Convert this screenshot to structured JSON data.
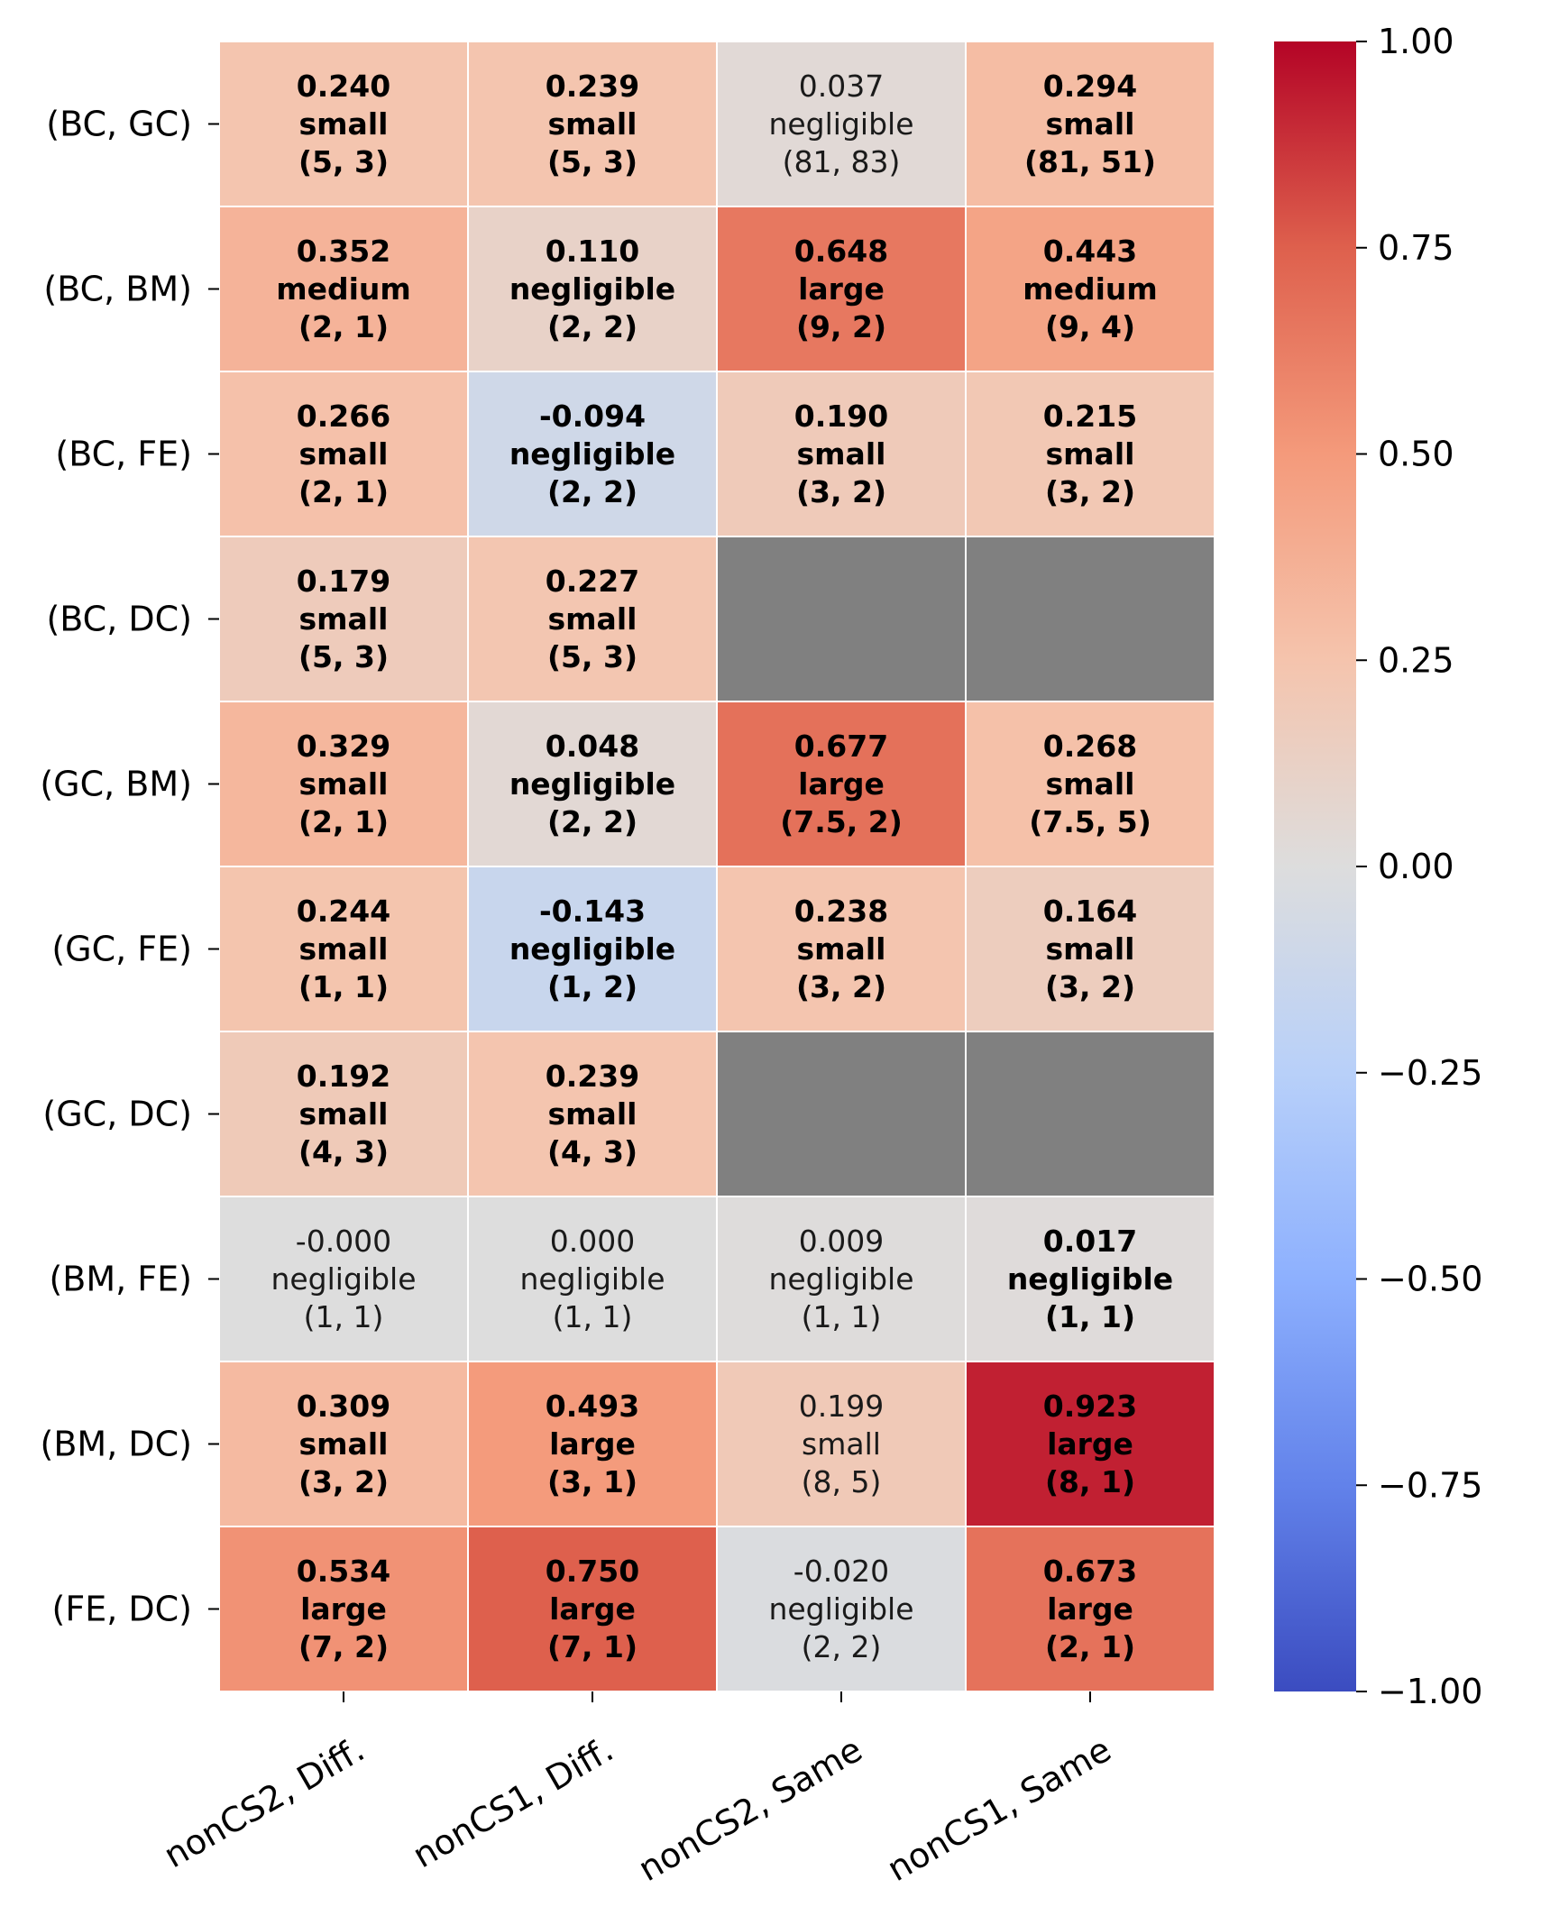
{
  "chart_data": {
    "type": "heatmap",
    "title": "",
    "xlabel": "",
    "ylabel": "",
    "columns": [
      "nonCS2, Diff.",
      "nonCS1, Diff.",
      "nonCS2, Same",
      "nonCS1, Same"
    ],
    "rows": [
      "(BC, GC)",
      "(BC, BM)",
      "(BC, FE)",
      "(BC, DC)",
      "(GC, BM)",
      "(GC, FE)",
      "(GC, DC)",
      "(BM, FE)",
      "(BM, DC)",
      "(FE, DC)"
    ],
    "vmin": -1.0,
    "vmax": 1.0,
    "colormap": "coolwarm",
    "missing_color": "#808080",
    "colorbar_ticks": [
      "1.00",
      "0.75",
      "0.50",
      "0.25",
      "0.00",
      "−0.25",
      "−0.50",
      "−0.75",
      "−1.00"
    ],
    "colorbar_tick_values": [
      1.0,
      0.75,
      0.5,
      0.25,
      0.0,
      -0.25,
      -0.5,
      -0.75,
      -1.0
    ],
    "cells": [
      [
        {
          "value": 0.24,
          "value_label": "0.240",
          "effect": "small",
          "pair": "(5, 3)",
          "bold": true
        },
        {
          "value": 0.239,
          "value_label": "0.239",
          "effect": "small",
          "pair": "(5, 3)",
          "bold": true
        },
        {
          "value": 0.037,
          "value_label": "0.037",
          "effect": "negligible",
          "pair": "(81, 83)",
          "bold": false
        },
        {
          "value": 0.294,
          "value_label": "0.294",
          "effect": "small",
          "pair": "(81, 51)",
          "bold": true
        }
      ],
      [
        {
          "value": 0.352,
          "value_label": "0.352",
          "effect": "medium",
          "pair": "(2, 1)",
          "bold": true
        },
        {
          "value": 0.11,
          "value_label": "0.110",
          "effect": "negligible",
          "pair": "(2, 2)",
          "bold": true
        },
        {
          "value": 0.648,
          "value_label": "0.648",
          "effect": "large",
          "pair": "(9, 2)",
          "bold": true
        },
        {
          "value": 0.443,
          "value_label": "0.443",
          "effect": "medium",
          "pair": "(9, 4)",
          "bold": true
        }
      ],
      [
        {
          "value": 0.266,
          "value_label": "0.266",
          "effect": "small",
          "pair": "(2, 1)",
          "bold": true
        },
        {
          "value": -0.094,
          "value_label": "-0.094",
          "effect": "negligible",
          "pair": "(2, 2)",
          "bold": true
        },
        {
          "value": 0.19,
          "value_label": "0.190",
          "effect": "small",
          "pair": "(3, 2)",
          "bold": true
        },
        {
          "value": 0.215,
          "value_label": "0.215",
          "effect": "small",
          "pair": "(3, 2)",
          "bold": true
        }
      ],
      [
        {
          "value": 0.179,
          "value_label": "0.179",
          "effect": "small",
          "pair": "(5, 3)",
          "bold": true
        },
        {
          "value": 0.227,
          "value_label": "0.227",
          "effect": "small",
          "pair": "(5, 3)",
          "bold": true
        },
        null,
        null
      ],
      [
        {
          "value": 0.329,
          "value_label": "0.329",
          "effect": "small",
          "pair": "(2, 1)",
          "bold": true
        },
        {
          "value": 0.048,
          "value_label": "0.048",
          "effect": "negligible",
          "pair": "(2, 2)",
          "bold": true
        },
        {
          "value": 0.677,
          "value_label": "0.677",
          "effect": "large",
          "pair": "(7.5, 2)",
          "bold": true
        },
        {
          "value": 0.268,
          "value_label": "0.268",
          "effect": "small",
          "pair": "(7.5, 5)",
          "bold": true
        }
      ],
      [
        {
          "value": 0.244,
          "value_label": "0.244",
          "effect": "small",
          "pair": "(1, 1)",
          "bold": true
        },
        {
          "value": -0.143,
          "value_label": "-0.143",
          "effect": "negligible",
          "pair": "(1, 2)",
          "bold": true
        },
        {
          "value": 0.238,
          "value_label": "0.238",
          "effect": "small",
          "pair": "(3, 2)",
          "bold": true
        },
        {
          "value": 0.164,
          "value_label": "0.164",
          "effect": "small",
          "pair": "(3, 2)",
          "bold": true
        }
      ],
      [
        {
          "value": 0.192,
          "value_label": "0.192",
          "effect": "small",
          "pair": "(4, 3)",
          "bold": true
        },
        {
          "value": 0.239,
          "value_label": "0.239",
          "effect": "small",
          "pair": "(4, 3)",
          "bold": true
        },
        null,
        null
      ],
      [
        {
          "value": -0.0,
          "value_label": "-0.000",
          "effect": "negligible",
          "pair": "(1, 1)",
          "bold": false
        },
        {
          "value": 0.0,
          "value_label": "0.000",
          "effect": "negligible",
          "pair": "(1, 1)",
          "bold": false
        },
        {
          "value": 0.009,
          "value_label": "0.009",
          "effect": "negligible",
          "pair": "(1, 1)",
          "bold": false
        },
        {
          "value": 0.017,
          "value_label": "0.017",
          "effect": "negligible",
          "pair": "(1, 1)",
          "bold": true
        }
      ],
      [
        {
          "value": 0.309,
          "value_label": "0.309",
          "effect": "small",
          "pair": "(3, 2)",
          "bold": true
        },
        {
          "value": 0.493,
          "value_label": "0.493",
          "effect": "large",
          "pair": "(3, 1)",
          "bold": true
        },
        {
          "value": 0.199,
          "value_label": "0.199",
          "effect": "small",
          "pair": "(8, 5)",
          "bold": false
        },
        {
          "value": 0.923,
          "value_label": "0.923",
          "effect": "large",
          "pair": "(8, 1)",
          "bold": true
        }
      ],
      [
        {
          "value": 0.534,
          "value_label": "0.534",
          "effect": "large",
          "pair": "(7, 2)",
          "bold": true
        },
        {
          "value": 0.75,
          "value_label": "0.750",
          "effect": "large",
          "pair": "(7, 1)",
          "bold": true
        },
        {
          "value": -0.02,
          "value_label": "-0.020",
          "effect": "negligible",
          "pair": "(2, 2)",
          "bold": false
        },
        {
          "value": 0.673,
          "value_label": "0.673",
          "effect": "large",
          "pair": "(2, 1)",
          "bold": true
        }
      ]
    ]
  }
}
